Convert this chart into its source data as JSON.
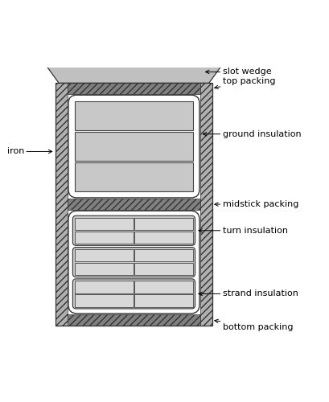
{
  "fig_width": 4.09,
  "fig_height": 5.0,
  "dpi": 100,
  "bg_color": "#ffffff",
  "iron_fc": "#b0b0b0",
  "iron_ec": "#333333",
  "packing_fc": "#888888",
  "packing_ec": "#333333",
  "slot_bg": "#ffffff",
  "wedge_fc": "#c0c0c0",
  "wedge_ec": "#333333",
  "conductor_fc": "#c8c8c8",
  "conductor_ec": "#444444",
  "strand_fc": "#d8d8d8",
  "strand_ec": "#444444",
  "ground_ins_fc": "#ffffff",
  "ground_ins_ec": "#333333",
  "turn_ins_fc": "#c8c8c8",
  "turn_ins_ec": "#333333",
  "labels": {
    "slot_wedge": "slot wedge",
    "top_packing": "top packing",
    "ground_insulation": "ground insulation",
    "iron": "iron",
    "midstick_packing": "midstick packing",
    "turn_insulation": "turn insulation",
    "strand_insulation": "strand insulation",
    "bottom_packing": "bottom packing"
  },
  "font_size": 8.0
}
